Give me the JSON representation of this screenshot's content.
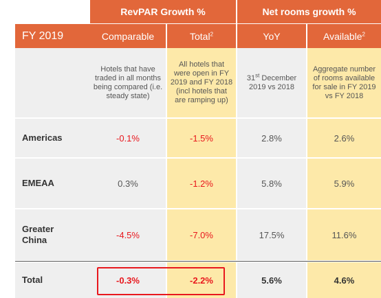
{
  "header": {
    "revpar_group": "RevPAR Growth %",
    "net_rooms_group": "Net rooms growth %",
    "year_label": "FY 2019",
    "col_comparable": "Comparable",
    "col_total": "Total",
    "col_total_sup": "2",
    "col_yoy": "YoY",
    "col_available": "Available",
    "col_available_sup": "2"
  },
  "descriptions": {
    "comparable": "Hotels that have traded in all months being compared (i.e. steady state)",
    "total": "All hotels that were open in FY 2019 and FY 2018 (incl hotels that are ramping up)",
    "yoy_pre": "31",
    "yoy_sup": "st",
    "yoy_post": " December 2019 vs 2018",
    "available": "Aggregate number of rooms available for sale in FY 2019 vs FY 2018"
  },
  "rows": [
    {
      "region": "Americas",
      "comparable": "-0.1%",
      "total": "-1.5%",
      "yoy": "2.8%",
      "available": "2.6%"
    },
    {
      "region": "EMEAA",
      "comparable": "0.3%",
      "total": "-1.2%",
      "yoy": "5.8%",
      "available": "5.9%"
    },
    {
      "region": "Greater China",
      "comparable": "-4.5%",
      "total": "-7.0%",
      "yoy": "17.5%",
      "available": "11.6%"
    },
    {
      "region": "Total",
      "comparable": "-0.3%",
      "total": "-2.2%",
      "yoy": "5.6%",
      "available": "4.6%"
    }
  ],
  "colors": {
    "header_orange": "#e2673a",
    "highlight_yellow": "#fde9a9",
    "negative_red": "#e8171d",
    "grey_cell": "#efefef"
  }
}
